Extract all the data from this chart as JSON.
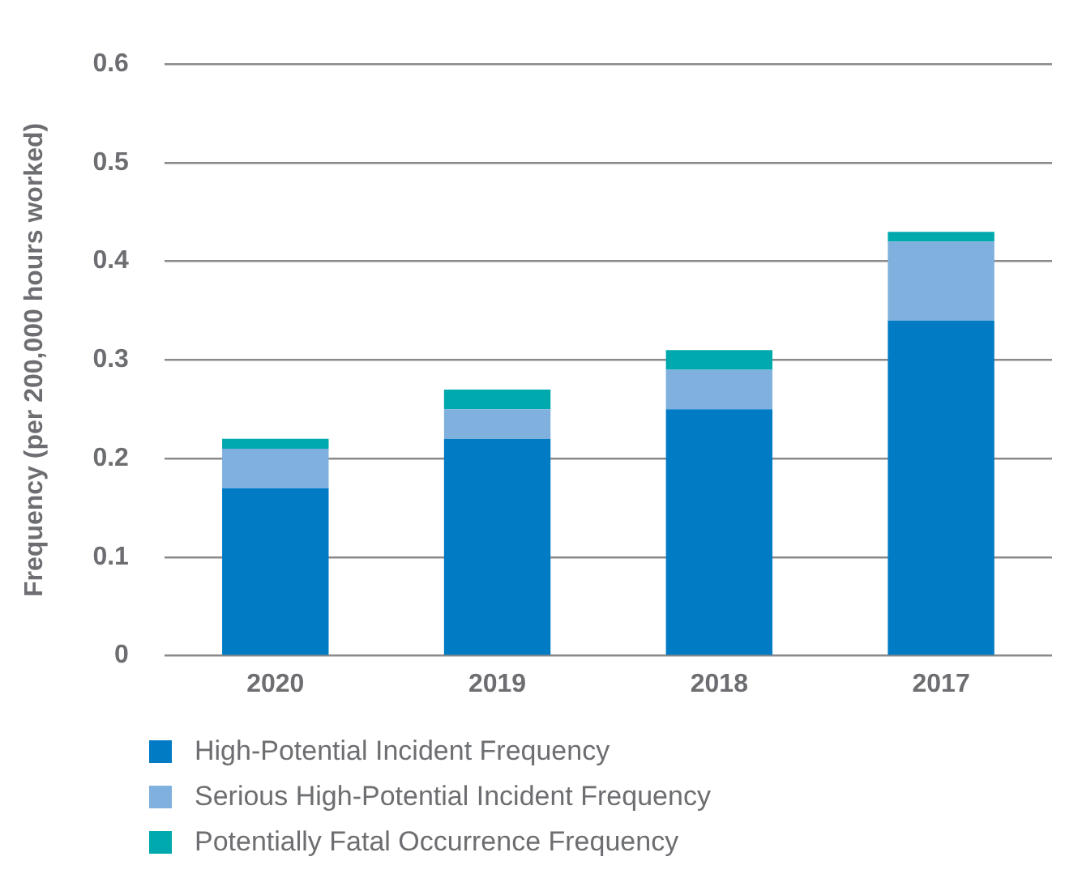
{
  "chart_data": {
    "type": "bar",
    "ylabel": "Frequency (per 200,000 hours worked)",
    "categories": [
      "2020",
      "2019",
      "2018",
      "2017"
    ],
    "stacked": true,
    "series": [
      {
        "name": "High-Potential Incident Frequency",
        "color": "#007bc4",
        "values": [
          0.17,
          0.22,
          0.25,
          0.34
        ]
      },
      {
        "name": "Serious High-Potential Incident Frequency",
        "color": "#7fb0de",
        "values": [
          0.04,
          0.03,
          0.04,
          0.08
        ]
      },
      {
        "name": "Potentially Fatal Occurrence Frequency",
        "color": "#00a9ae",
        "values": [
          0.01,
          0.02,
          0.02,
          0.01
        ]
      }
    ],
    "ylim": [
      0,
      0.6
    ],
    "yticks": [
      0,
      0.1,
      0.2,
      0.3,
      0.4,
      0.5,
      0.6
    ],
    "grid": "y",
    "legend": "bottom"
  }
}
